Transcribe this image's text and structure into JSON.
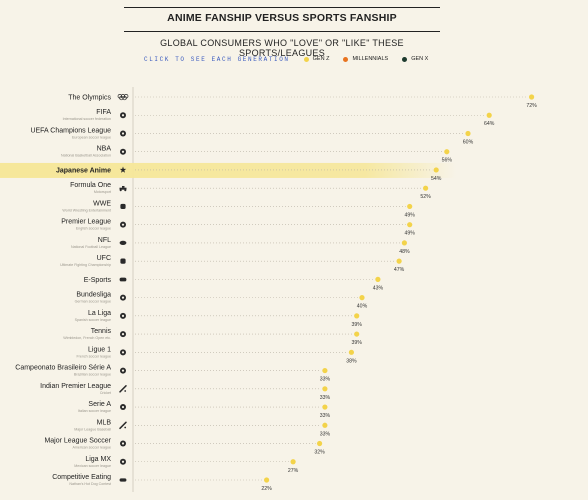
{
  "header": {
    "title": "ANIME FANSHIP VERSUS SPORTS FANSHIP",
    "subtitle": "GLOBAL CONSUMERS WHO \"LOVE\" OR \"LIKE\" THESE SPORTS/LEAGUES"
  },
  "legend": {
    "cta": "CLICK TO SEE EACH GENERATION",
    "items": [
      {
        "label": "GEN Z",
        "color": "#f3d34a"
      },
      {
        "label": "MILLENNIALS",
        "color": "#e8731f"
      },
      {
        "label": "GEN X",
        "color": "#1d3a2e"
      }
    ]
  },
  "chart_data": {
    "type": "scatter",
    "title": "ANIME FANSHIP VERSUS SPORTS FANSHIP",
    "subtitle": "GLOBAL CONSUMERS WHO \"LOVE\" OR \"LIKE\" THESE SPORTS/LEAGUES",
    "xlim": [
      0,
      80
    ],
    "highlight_color": "#f6e79a",
    "dot_color": "#f3d34a",
    "categories": [
      {
        "name": "The Olympics",
        "sub": "",
        "icon": "olympic-rings-icon",
        "value": 72,
        "label": "72%"
      },
      {
        "name": "FIFA",
        "sub": "International soccer federation",
        "icon": "soccer-ball-icon",
        "value": 64,
        "label": "64%"
      },
      {
        "name": "UEFA Champions League",
        "sub": "European soccer league",
        "icon": "soccer-ball-icon",
        "value": 60,
        "label": "60%"
      },
      {
        "name": "NBA",
        "sub": "National Basketball Association",
        "icon": "basketball-icon",
        "value": 56,
        "label": "56%"
      },
      {
        "name": "Japanese Anime",
        "sub": "",
        "icon": "star-icon",
        "value": 54,
        "label": "54%",
        "highlight": true
      },
      {
        "name": "Formula One",
        "sub": "Motorsport",
        "icon": "race-car-icon",
        "value": 52,
        "label": "52%"
      },
      {
        "name": "WWE",
        "sub": "World Wrestling Entertainment",
        "icon": "wrestling-icon",
        "value": 49,
        "label": "49%"
      },
      {
        "name": "Premier League",
        "sub": "English soccer league",
        "icon": "soccer-ball-icon",
        "value": 49,
        "label": "49%"
      },
      {
        "name": "NFL",
        "sub": "National Football League",
        "icon": "football-icon",
        "value": 48,
        "label": "48%"
      },
      {
        "name": "UFC",
        "sub": "Ultimate Fighting Championship",
        "icon": "glove-icon",
        "value": 47,
        "label": "47%"
      },
      {
        "name": "E-Sports",
        "sub": "",
        "icon": "controller-icon",
        "value": 43,
        "label": "43%"
      },
      {
        "name": "Bundesliga",
        "sub": "German soccer league",
        "icon": "soccer-ball-icon",
        "value": 40,
        "label": "40%"
      },
      {
        "name": "La Liga",
        "sub": "Spanish soccer league",
        "icon": "soccer-ball-icon",
        "value": 39,
        "label": "39%"
      },
      {
        "name": "Tennis",
        "sub": "Wimbledon, French Open etc.",
        "icon": "tennis-ball-icon",
        "value": 39,
        "label": "39%"
      },
      {
        "name": "Ligue 1",
        "sub": "French soccer league",
        "icon": "soccer-ball-icon",
        "value": 38,
        "label": "38%"
      },
      {
        "name": "Campeonato Brasileiro Série A",
        "sub": "Brazilian soccer league",
        "icon": "soccer-ball-icon",
        "value": 33,
        "label": "33%"
      },
      {
        "name": "Indian Premier League",
        "sub": "Cricket",
        "icon": "cricket-bat-icon",
        "value": 33,
        "label": "33%"
      },
      {
        "name": "Serie A",
        "sub": "Italian soccer league",
        "icon": "soccer-ball-icon",
        "value": 33,
        "label": "33%"
      },
      {
        "name": "MLB",
        "sub": "Major League Baseball",
        "icon": "baseball-bat-icon",
        "value": 33,
        "label": "33%"
      },
      {
        "name": "Major League Soccer",
        "sub": "American soccer league",
        "icon": "soccer-ball-icon",
        "value": 32,
        "label": "32%"
      },
      {
        "name": "Liga MX",
        "sub": "Mexican soccer league",
        "icon": "soccer-ball-icon",
        "value": 27,
        "label": "27%"
      },
      {
        "name": "Competitive Eating",
        "sub": "Nathan's Hot Dog Contest",
        "icon": "hot-dog-icon",
        "value": 22,
        "label": "22%"
      }
    ]
  }
}
